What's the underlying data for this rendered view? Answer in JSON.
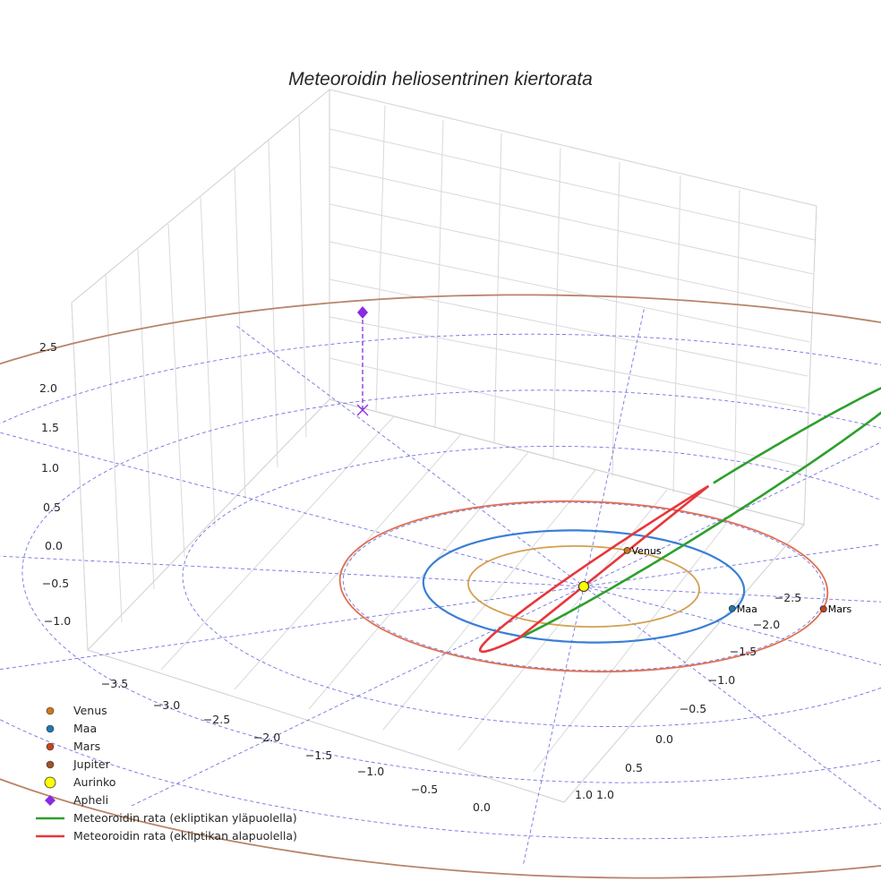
{
  "chart_data": {
    "type": "line",
    "projection": "3d",
    "title": "Meteoroidin heliosentrinen kiertorata",
    "axes": {
      "x": {
        "ticks": [
          "−3.5",
          "−3.0",
          "−2.5",
          "−2.0",
          "−1.5",
          "−1.0",
          "−0.5",
          "0.0",
          "1.0"
        ]
      },
      "y": {
        "ticks": [
          "−2.5",
          "−2.0",
          "−1.5",
          "−1.0",
          "−0.5",
          "0.0",
          "0.5",
          "1.0"
        ]
      },
      "z": {
        "ticks": [
          "2.5",
          "2.0",
          "1.5",
          "1.0",
          "0.5",
          "0.0",
          "−0.5",
          "−1.0"
        ]
      }
    },
    "sun": {
      "name": "Aurinko",
      "x": 0,
      "y": 0,
      "z": 0,
      "color": "#ffff00"
    },
    "planets": [
      {
        "name": "Venus",
        "orbit_radius_au": 0.72,
        "color": "#d4a050",
        "marker_color": "#cc7a1a",
        "show_label": true
      },
      {
        "name": "Maa",
        "orbit_radius_au": 1.0,
        "color": "#3a7fd5",
        "marker_color": "#1f77b4",
        "show_label": true
      },
      {
        "name": "Mars",
        "orbit_radius_au": 1.52,
        "color": "#e07050",
        "marker_color": "#c8421a",
        "show_label": true
      },
      {
        "name": "Jupiter",
        "orbit_radius_au": 5.2,
        "color": "#b8856a",
        "marker_color": "#a0522d",
        "show_label": false
      }
    ],
    "aphelion": {
      "name": "Apheli",
      "z_au": 2.7,
      "color": "#8a2be2"
    },
    "series": [
      {
        "name": "Meteoroidin rata (ekliptikan yläpuolella)",
        "color": "#2ca02c"
      },
      {
        "name": "Meteoroidin rata (ekliptikan alapuolella)",
        "color": "#e8363a"
      }
    ],
    "legend": {
      "position": "bottom-left",
      "items": [
        "Venus",
        "Maa",
        "Mars",
        "Jupiter",
        "Aurinko",
        "Apheli",
        "Meteoroidin rata (ekliptikan yläpuolella)",
        "Meteoroidin rata (ekliptikan alapuolella)"
      ]
    },
    "grid": true
  }
}
